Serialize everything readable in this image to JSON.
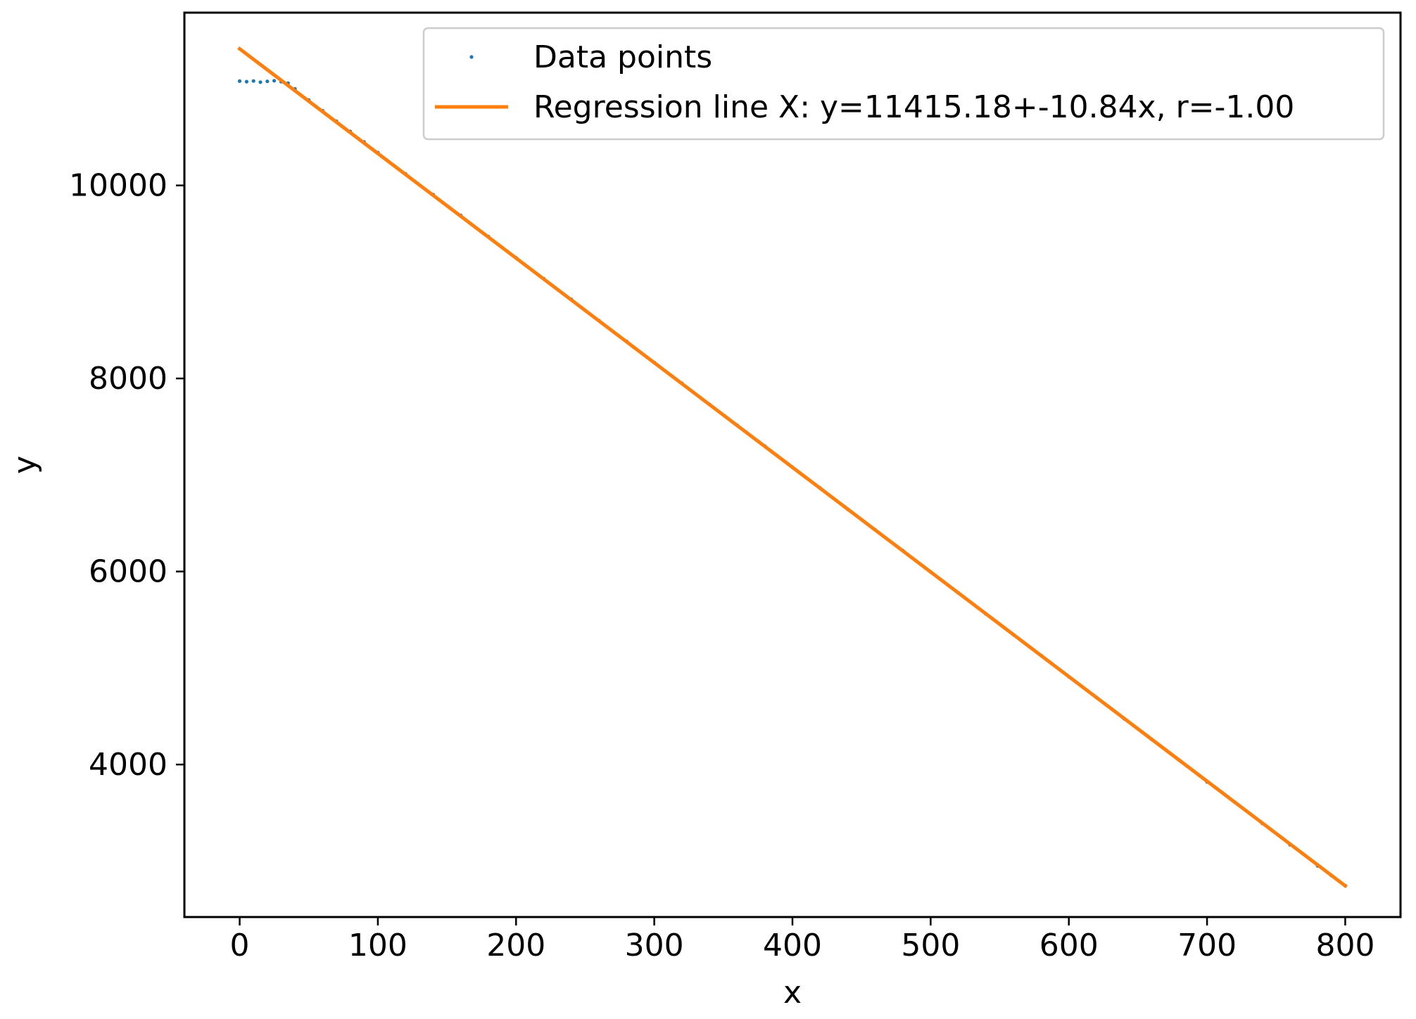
{
  "chart_data": {
    "type": "scatter",
    "xlabel": "x",
    "ylabel": "y",
    "xlim": [
      -40,
      840
    ],
    "ylim": [
      2420,
      11790
    ],
    "grid": false,
    "legend_position": "upper right",
    "x_ticks": [
      0,
      100,
      200,
      300,
      400,
      500,
      600,
      700,
      800
    ],
    "y_ticks": [
      4000,
      6000,
      8000,
      10000
    ],
    "x_tick_labels": [
      "0",
      "100",
      "200",
      "300",
      "400",
      "500",
      "600",
      "700",
      "800"
    ],
    "y_tick_labels": [
      "4000",
      "6000",
      "8000",
      "10000"
    ],
    "series": [
      {
        "name": "Data points",
        "kind": "scatter",
        "color": "#1f77b4",
        "points": [
          [
            0,
            11080
          ],
          [
            5,
            11075
          ],
          [
            10,
            11082
          ],
          [
            15,
            11070
          ],
          [
            20,
            11078
          ],
          [
            25,
            11085
          ],
          [
            30,
            11075
          ],
          [
            35,
            11060
          ],
          [
            40,
            11000
          ],
          [
            50,
            10885
          ],
          [
            60,
            10775
          ],
          [
            70,
            10665
          ],
          [
            80,
            10560
          ],
          [
            90,
            10450
          ],
          [
            100,
            10340
          ],
          [
            120,
            10120
          ],
          [
            140,
            9905
          ],
          [
            160,
            9690
          ],
          [
            180,
            9470
          ],
          [
            200,
            9250
          ],
          [
            220,
            9035
          ],
          [
            240,
            8820
          ],
          [
            260,
            8600
          ],
          [
            280,
            8385
          ],
          [
            300,
            8165
          ],
          [
            320,
            7950
          ],
          [
            340,
            7730
          ],
          [
            360,
            7515
          ],
          [
            380,
            7300
          ],
          [
            400,
            7080
          ],
          [
            420,
            6865
          ],
          [
            440,
            6645
          ],
          [
            460,
            6430
          ],
          [
            480,
            6215
          ],
          [
            500,
            5995
          ],
          [
            520,
            5780
          ],
          [
            540,
            5560
          ],
          [
            560,
            5345
          ],
          [
            580,
            5130
          ],
          [
            600,
            4910
          ],
          [
            620,
            4695
          ],
          [
            640,
            4475
          ],
          [
            660,
            4260
          ],
          [
            680,
            4045
          ],
          [
            700,
            3820
          ],
          [
            720,
            3610
          ],
          [
            740,
            3390
          ],
          [
            760,
            3170
          ],
          [
            780,
            2950
          ],
          [
            790,
            2850
          ],
          [
            800,
            2745
          ]
        ]
      },
      {
        "name": "Regression line X: y=11415.18+-10.84x, r=-1.00",
        "kind": "line",
        "color": "#ff7f0e",
        "x": [
          0,
          800
        ],
        "y": [
          11415.18,
          2743.18
        ]
      }
    ]
  }
}
